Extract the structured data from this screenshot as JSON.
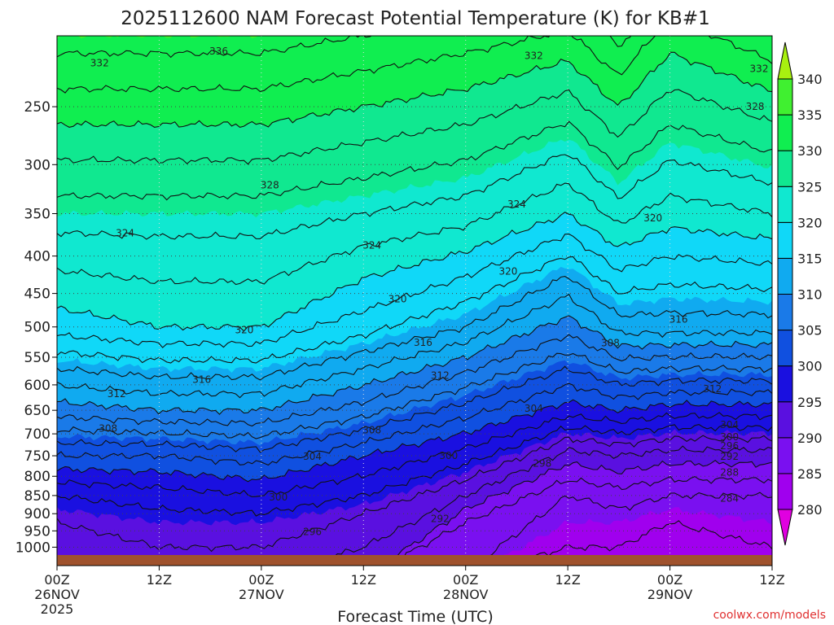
{
  "chart_data": {
    "type": "contour",
    "title": "2025112600 NAM Forecast Potential Temperature (K) for KB#1",
    "xlabel": "Forecast Time (UTC)",
    "ylabel": "",
    "x_ticks": [
      {
        "hour": 0,
        "label": "00Z",
        "date": "26NOV",
        "year": "2025"
      },
      {
        "hour": 12,
        "label": "12Z"
      },
      {
        "hour": 24,
        "label": "00Z",
        "date": "27NOV"
      },
      {
        "hour": 36,
        "label": "12Z"
      },
      {
        "hour": 48,
        "label": "00Z",
        "date": "28NOV"
      },
      {
        "hour": 60,
        "label": "12Z"
      },
      {
        "hour": 72,
        "label": "00Z",
        "date": "29NOV"
      },
      {
        "hour": 84,
        "label": "12Z"
      }
    ],
    "xlim": [
      0,
      84
    ],
    "y_ticks": [
      250,
      300,
      350,
      400,
      450,
      500,
      550,
      600,
      650,
      700,
      750,
      800,
      850,
      900,
      950,
      1000
    ],
    "ylim": [
      1025,
      200
    ],
    "y_scale": "log",
    "colorbar": {
      "levels": [
        280,
        285,
        290,
        295,
        300,
        305,
        310,
        315,
        320,
        325,
        330,
        335,
        340
      ],
      "colors": [
        "#e000e0",
        "#a000ee",
        "#7a10f0",
        "#5a10e0",
        "#1a10e0",
        "#1050e0",
        "#1a7ae8",
        "#10aaf0",
        "#10d8f8",
        "#10e8d0",
        "#10e890",
        "#10ee50",
        "#40f030",
        "#a8f010"
      ]
    },
    "grid": true,
    "theta_profiles": [
      {
        "hour": 0,
        "levels": [
          [
            1000,
            293
          ],
          [
            925,
            294
          ],
          [
            850,
            296
          ],
          [
            750,
            302
          ],
          [
            650,
            309
          ],
          [
            500,
            319
          ],
          [
            350,
            325
          ],
          [
            250,
            331
          ]
        ]
      },
      {
        "hour": 12,
        "levels": [
          [
            1000,
            294
          ],
          [
            925,
            295
          ],
          [
            850,
            297
          ],
          [
            750,
            302
          ],
          [
            650,
            310
          ],
          [
            500,
            320
          ],
          [
            350,
            325
          ],
          [
            250,
            331
          ]
        ]
      },
      {
        "hour": 24,
        "levels": [
          [
            1000,
            294
          ],
          [
            925,
            295
          ],
          [
            850,
            298
          ],
          [
            750,
            303
          ],
          [
            650,
            310
          ],
          [
            500,
            320
          ],
          [
            350,
            325
          ],
          [
            250,
            331
          ]
        ]
      },
      {
        "hour": 36,
        "levels": [
          [
            1000,
            292
          ],
          [
            925,
            293
          ],
          [
            850,
            296
          ],
          [
            750,
            300
          ],
          [
            650,
            307
          ],
          [
            500,
            317
          ],
          [
            350,
            324
          ],
          [
            250,
            330
          ]
        ]
      },
      {
        "hour": 48,
        "levels": [
          [
            1000,
            287
          ],
          [
            925,
            288
          ],
          [
            850,
            292
          ],
          [
            750,
            297
          ],
          [
            650,
            303
          ],
          [
            500,
            314
          ],
          [
            350,
            323
          ],
          [
            250,
            329
          ]
        ]
      },
      {
        "hour": 60,
        "levels": [
          [
            1000,
            284
          ],
          [
            925,
            285
          ],
          [
            850,
            286
          ],
          [
            750,
            291
          ],
          [
            650,
            299
          ],
          [
            500,
            309
          ],
          [
            350,
            320
          ],
          [
            250,
            327
          ]
        ]
      },
      {
        "hour": 66,
        "levels": [
          [
            1000,
            284
          ],
          [
            925,
            285
          ],
          [
            850,
            287
          ],
          [
            750,
            292
          ],
          [
            650,
            300
          ],
          [
            500,
            313
          ],
          [
            350,
            323
          ],
          [
            250,
            330
          ]
        ]
      },
      {
        "hour": 72,
        "levels": [
          [
            1000,
            283
          ],
          [
            925,
            284
          ],
          [
            850,
            286
          ],
          [
            750,
            291
          ],
          [
            650,
            299
          ],
          [
            500,
            313
          ],
          [
            350,
            321
          ],
          [
            250,
            327
          ]
        ]
      },
      {
        "hour": 84,
        "levels": [
          [
            1000,
            284
          ],
          [
            925,
            285
          ],
          [
            850,
            286
          ],
          [
            750,
            291
          ],
          [
            650,
            299
          ],
          [
            500,
            313
          ],
          [
            350,
            322
          ],
          [
            250,
            329
          ]
        ]
      }
    ],
    "contour_labels": [
      {
        "text": "336",
        "hour": 19,
        "p": 210
      },
      {
        "text": "332",
        "hour": 5,
        "p": 218
      },
      {
        "text": "332",
        "hour": 56,
        "p": 213
      },
      {
        "text": "332",
        "hour": 87,
        "p": 222
      },
      {
        "text": "328",
        "hour": 25,
        "p": 320
      },
      {
        "text": "328",
        "hour": 82,
        "p": 250
      },
      {
        "text": "324",
        "hour": 8,
        "p": 372
      },
      {
        "text": "324",
        "hour": 37,
        "p": 387
      },
      {
        "text": "324",
        "hour": 54,
        "p": 340
      },
      {
        "text": "320",
        "hour": 70,
        "p": 355
      },
      {
        "text": "320",
        "hour": 53,
        "p": 420
      },
      {
        "text": "320",
        "hour": 40,
        "p": 458
      },
      {
        "text": "320",
        "hour": 22,
        "p": 505
      },
      {
        "text": "316",
        "hour": 73,
        "p": 488
      },
      {
        "text": "316",
        "hour": 43,
        "p": 525
      },
      {
        "text": "316",
        "hour": 17,
        "p": 590
      },
      {
        "text": "312",
        "hour": 45,
        "p": 583
      },
      {
        "text": "312",
        "hour": 7,
        "p": 617
      },
      {
        "text": "312",
        "hour": 77,
        "p": 608
      },
      {
        "text": "308",
        "hour": 65,
        "p": 526
      },
      {
        "text": "308",
        "hour": 6,
        "p": 688
      },
      {
        "text": "308",
        "hour": 37,
        "p": 692
      },
      {
        "text": "304",
        "hour": 56,
        "p": 646
      },
      {
        "text": "304",
        "hour": 30,
        "p": 752
      },
      {
        "text": "304",
        "hour": 79,
        "p": 680
      },
      {
        "text": "300",
        "hour": 46,
        "p": 750
      },
      {
        "text": "300",
        "hour": 26,
        "p": 855
      },
      {
        "text": "300",
        "hour": 79,
        "p": 707
      },
      {
        "text": "298",
        "hour": 57,
        "p": 768
      },
      {
        "text": "296",
        "hour": 79,
        "p": 727
      },
      {
        "text": "296",
        "hour": 30,
        "p": 953
      },
      {
        "text": "292",
        "hour": 79,
        "p": 752
      },
      {
        "text": "292",
        "hour": 45,
        "p": 914
      },
      {
        "text": "288",
        "hour": 79,
        "p": 790
      },
      {
        "text": "284",
        "hour": 79,
        "p": 858
      }
    ],
    "watermark": "coolwx.com/models"
  }
}
